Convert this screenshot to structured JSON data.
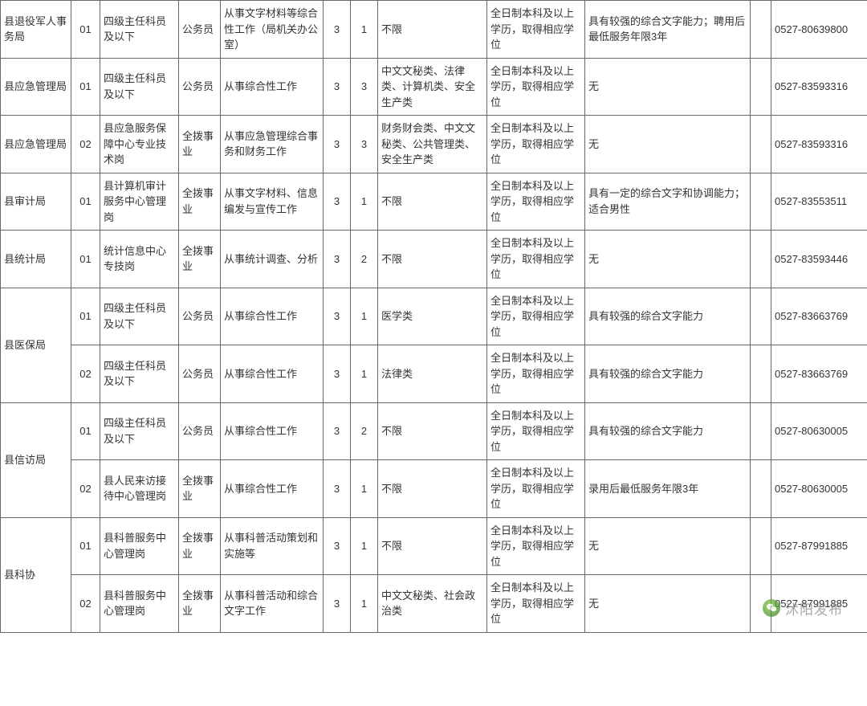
{
  "table": {
    "rows": [
      {
        "dept": "县退役军人事务局",
        "deptRowspan": 1,
        "code": "01",
        "post": "四级主任科员及以下",
        "type": "公务员",
        "duty": "从事文字材料等综合性工作（局机关办公室）",
        "n1": "3",
        "n2": "1",
        "major": "不限",
        "edu": "全日制本科及以上学历，取得相应学位",
        "other": "具有较强的综合文字能力；聘用后最低服务年限3年",
        "blank": "",
        "phone": "0527-80639800"
      },
      {
        "dept": "县应急管理局",
        "deptRowspan": 1,
        "code": "01",
        "post": "四级主任科员及以下",
        "type": "公务员",
        "duty": "从事综合性工作",
        "n1": "3",
        "n2": "3",
        "major": "中文文秘类、法律类、计算机类、安全生产类",
        "edu": "全日制本科及以上学历，取得相应学位",
        "other": "无",
        "blank": "",
        "phone": "0527-83593316"
      },
      {
        "dept": "县应急管理局",
        "deptRowspan": 1,
        "code": "02",
        "post": "县应急服务保障中心专业技术岗",
        "type": "全拨事业",
        "duty": "从事应急管理综合事务和财务工作",
        "n1": "3",
        "n2": "3",
        "major": "财务财会类、中文文秘类、公共管理类、安全生产类",
        "edu": "全日制本科及以上学历，取得相应学位",
        "other": "无",
        "blank": "",
        "phone": "0527-83593316"
      },
      {
        "dept": "县审计局",
        "deptRowspan": 1,
        "code": "01",
        "post": "县计算机审计服务中心管理岗",
        "type": "全拨事业",
        "duty": "从事文字材料、信息编发与宣传工作",
        "n1": "3",
        "n2": "1",
        "major": "不限",
        "edu": "全日制本科及以上学历，取得相应学位",
        "other": "具有一定的综合文字和协调能力；适合男性",
        "blank": "",
        "phone": "0527-83553511"
      },
      {
        "dept": "县统计局",
        "deptRowspan": 1,
        "code": "01",
        "post": "统计信息中心专技岗",
        "type": "全拨事业",
        "duty": "从事统计调查、分析",
        "n1": "3",
        "n2": "2",
        "major": "不限",
        "edu": "全日制本科及以上学历，取得相应学位",
        "other": "无",
        "blank": "",
        "phone": "0527-83593446"
      },
      {
        "dept": "县医保局",
        "deptRowspan": 2,
        "code": "01",
        "post": "四级主任科员及以下",
        "type": "公务员",
        "duty": "从事综合性工作",
        "n1": "3",
        "n2": "1",
        "major": "医学类",
        "edu": "全日制本科及以上学历，取得相应学位",
        "other": "具有较强的综合文字能力",
        "blank": "",
        "phone": "0527-83663769"
      },
      {
        "dept": null,
        "code": "02",
        "post": "四级主任科员及以下",
        "type": "公务员",
        "duty": "从事综合性工作",
        "n1": "3",
        "n2": "1",
        "major": "法律类",
        "edu": "全日制本科及以上学历，取得相应学位",
        "other": "具有较强的综合文字能力",
        "blank": "",
        "phone": "0527-83663769"
      },
      {
        "dept": "县信访局",
        "deptRowspan": 2,
        "code": "01",
        "post": "四级主任科员及以下",
        "type": "公务员",
        "duty": "从事综合性工作",
        "n1": "3",
        "n2": "2",
        "major": "不限",
        "edu": "全日制本科及以上学历，取得相应学位",
        "other": "具有较强的综合文字能力",
        "blank": "",
        "phone": "0527-80630005"
      },
      {
        "dept": null,
        "code": "02",
        "post": "县人民来访接待中心管理岗",
        "type": "全拨事业",
        "duty": "从事综合性工作",
        "n1": "3",
        "n2": "1",
        "major": "不限",
        "edu": "全日制本科及以上学历，取得相应学位",
        "other": "录用后最低服务年限3年",
        "blank": "",
        "phone": "0527-80630005"
      },
      {
        "dept": "县科协",
        "deptRowspan": 2,
        "code": "01",
        "post": "县科普服务中心管理岗",
        "type": "全拨事业",
        "duty": "从事科普活动策划和实施等",
        "n1": "3",
        "n2": "1",
        "major": "不限",
        "edu": "全日制本科及以上学历，取得相应学位",
        "other": "无",
        "blank": "",
        "phone": "0527-87991885"
      },
      {
        "dept": null,
        "code": "02",
        "post": "县科普服务中心管理岗",
        "type": "全拨事业",
        "duty": "从事科普活动和综合文字工作",
        "n1": "3",
        "n2": "1",
        "major": "中文文秘类、社会政治类",
        "edu": "全日制本科及以上学历，取得相应学位",
        "other": "无",
        "blank": "",
        "phone": "0527-87991885"
      }
    ]
  },
  "watermark": {
    "text": "沭阳发布"
  }
}
